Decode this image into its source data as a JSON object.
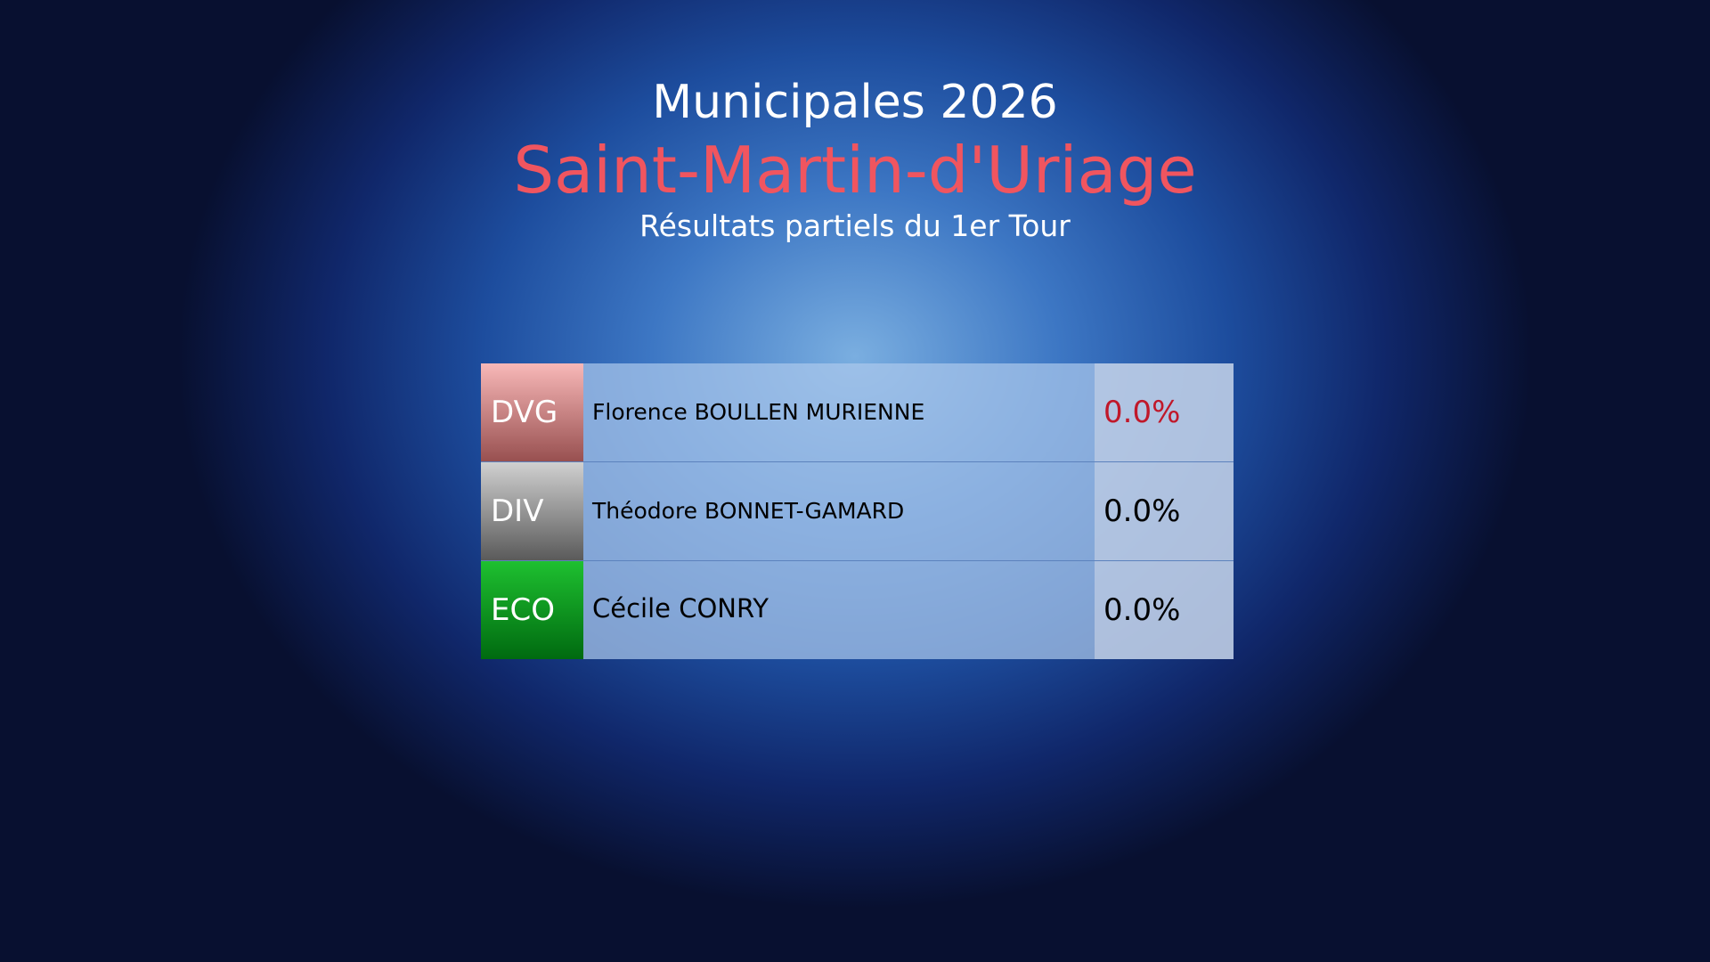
{
  "header": {
    "title": "Municipales 2026",
    "commune": "Saint-Martin-d'Uriage",
    "subtitle": "Résultats partiels du 1er Tour"
  },
  "colors": {
    "commune": "#f0555f",
    "highlight_pct": "#c0182a",
    "DVG": [
      "#f8b8b8",
      "#985050"
    ],
    "DIV": [
      "#d0d0d0",
      "#5a5a5a"
    ],
    "ECO": [
      "#1ec030",
      "#006a10"
    ]
  },
  "candidates": [
    {
      "party": "DVG",
      "name": "Florence BOULLEN MURIENNE",
      "pct": "0.0%"
    },
    {
      "party": "DIV",
      "name": "Théodore BONNET-GAMARD",
      "pct": "0.0%"
    },
    {
      "party": "ECO",
      "name": "Cécile CONRY",
      "pct": "0.0%"
    }
  ]
}
